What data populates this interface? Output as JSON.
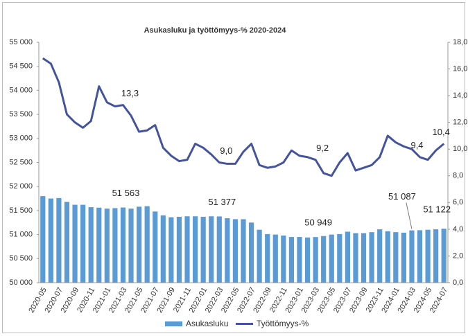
{
  "chart_data": {
    "type": "bar_line",
    "title": "Asukasluku ja työttömyys-% 2020-2024",
    "categories": [
      "2020-05",
      null,
      "2020-07",
      null,
      "2020-09",
      null,
      "2020-11",
      null,
      "2021-01",
      null,
      "2021-03",
      null,
      "2021-05",
      null,
      "2021-07",
      null,
      "2021-09",
      null,
      "2021-11",
      null,
      "2022-01",
      null,
      "2022-03",
      null,
      "2022-05",
      null,
      "2022-07",
      null,
      "2022-09",
      null,
      "2022-11",
      null,
      "2023-01",
      null,
      "2023-03",
      null,
      "2023-05",
      null,
      "2023-07",
      null,
      "2023-09",
      null,
      "2023-11",
      null,
      "2024-01",
      null,
      "2024-03",
      null,
      "2024-05",
      null,
      "2024-07"
    ],
    "series": [
      {
        "name": "Asukasluku",
        "color": "#5b9bd5",
        "axis": "y",
        "values": [
          51800,
          51750,
          51760,
          51680,
          51620,
          51620,
          51570,
          51560,
          51540,
          51550,
          51563,
          51540,
          51580,
          51590,
          51480,
          51400,
          51360,
          51370,
          51380,
          51380,
          51370,
          51380,
          51377,
          51340,
          51320,
          51320,
          51250,
          51100,
          51010,
          51000,
          50980,
          50950,
          50950,
          50940,
          50949,
          50970,
          51000,
          51010,
          51060,
          51030,
          51030,
          51050,
          51110,
          51070,
          51050,
          51040,
          51087,
          51090,
          51100,
          51110,
          51122
        ],
        "value_labels": [
          null,
          null,
          null,
          null,
          null,
          null,
          null,
          null,
          null,
          null,
          "51 563",
          null,
          null,
          null,
          null,
          null,
          null,
          null,
          null,
          null,
          null,
          null,
          "51 377",
          null,
          null,
          null,
          null,
          null,
          null,
          null,
          null,
          null,
          null,
          null,
          "50 949",
          null,
          null,
          null,
          null,
          null,
          null,
          null,
          null,
          null,
          null,
          null,
          "51 087",
          null,
          null,
          null,
          "51 122"
        ]
      },
      {
        "name": "Työttömyys-%",
        "color": "#44549c",
        "axis": "y2",
        "values": [
          16.8,
          16.4,
          15.0,
          12.6,
          12.0,
          11.6,
          12.1,
          14.7,
          13.5,
          13.2,
          13.3,
          12.5,
          11.3,
          11.4,
          11.8,
          10.1,
          9.5,
          9.1,
          9.2,
          10.4,
          10.1,
          9.6,
          9.0,
          8.9,
          8.9,
          9.8,
          10.4,
          8.8,
          8.6,
          8.7,
          9.0,
          9.9,
          9.5,
          9.4,
          9.2,
          8.2,
          8.0,
          9.0,
          9.7,
          8.4,
          8.6,
          8.8,
          9.4,
          11.0,
          10.5,
          10.2,
          10.0,
          9.4,
          9.2,
          9.9,
          10.4
        ],
        "value_labels": [
          null,
          null,
          null,
          null,
          null,
          null,
          null,
          null,
          null,
          null,
          "13,3",
          null,
          null,
          null,
          null,
          null,
          null,
          null,
          null,
          null,
          null,
          null,
          "9,0",
          null,
          null,
          null,
          null,
          null,
          null,
          null,
          null,
          null,
          null,
          null,
          "9,2",
          null,
          null,
          null,
          null,
          null,
          null,
          null,
          null,
          null,
          null,
          null,
          null,
          "9,4",
          null,
          null,
          "10,4"
        ]
      }
    ],
    "ylim": [
      50000,
      55000
    ],
    "yticks": [
      {
        "value": 50000,
        "label": "50 000"
      },
      {
        "value": 50500,
        "label": "50 500"
      },
      {
        "value": 51000,
        "label": "51 000"
      },
      {
        "value": 51500,
        "label": "51 500"
      },
      {
        "value": 52000,
        "label": "52 000"
      },
      {
        "value": 52500,
        "label": "52 500"
      },
      {
        "value": 53000,
        "label": "53 000"
      },
      {
        "value": 53500,
        "label": "53 500"
      },
      {
        "value": 54000,
        "label": "54 000"
      },
      {
        "value": 54500,
        "label": "54 500"
      },
      {
        "value": 55000,
        "label": "55 000"
      }
    ],
    "y2lim": [
      0,
      18
    ],
    "y2ticks": [
      {
        "value": 0,
        "label": "0,0"
      },
      {
        "value": 2,
        "label": "2,0"
      },
      {
        "value": 4,
        "label": "4,0"
      },
      {
        "value": 6,
        "label": "6,0"
      },
      {
        "value": 8,
        "label": "8,0"
      },
      {
        "value": 10,
        "label": "10,0"
      },
      {
        "value": 12,
        "label": "12,0"
      },
      {
        "value": 14,
        "label": "14,0"
      },
      {
        "value": 16,
        "label": "16,0"
      },
      {
        "value": 18,
        "label": "18,0"
      }
    ],
    "legend": "bottom"
  }
}
